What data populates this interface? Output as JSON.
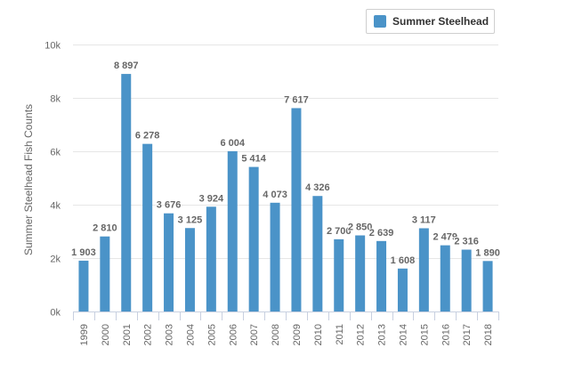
{
  "colors": {
    "bar": "#4a93c8",
    "grid": "#e6e6e6",
    "axis": "#c8d0e0",
    "text": "#666666"
  },
  "legend": {
    "label": "Summer Steelhead"
  },
  "chart_data": {
    "type": "bar",
    "title": "",
    "xlabel": "",
    "ylabel": "Summer Steelhead Fish Counts",
    "ylim": [
      0,
      10000
    ],
    "y_ticks": [
      0,
      2000,
      4000,
      6000,
      8000,
      10000
    ],
    "y_tick_labels": [
      "0k",
      "2k",
      "4k",
      "6k",
      "8k",
      "10k"
    ],
    "legend_position": "top-right",
    "grid": true,
    "categories": [
      "1999",
      "2000",
      "2001",
      "2002",
      "2003",
      "2004",
      "2005",
      "2006",
      "2007",
      "2008",
      "2009",
      "2010",
      "2011",
      "2012",
      "2013",
      "2014",
      "2015",
      "2016",
      "2017",
      "2018"
    ],
    "series": [
      {
        "name": "Summer Steelhead",
        "values": [
          1903,
          2810,
          8897,
          6278,
          3676,
          3125,
          3924,
          6004,
          5414,
          4073,
          7617,
          4326,
          2706,
          2850,
          2639,
          1608,
          3117,
          2479,
          2316,
          1890
        ],
        "labels": [
          "1 903",
          "2 810",
          "8 897",
          "6 278",
          "3 676",
          "3 125",
          "3 924",
          "6 004",
          "5 414",
          "4 073",
          "7 617",
          "4 326",
          "2 706",
          "2 850",
          "2 639",
          "1 608",
          "3 117",
          "2 479",
          "2 316",
          "1 890"
        ]
      }
    ]
  }
}
